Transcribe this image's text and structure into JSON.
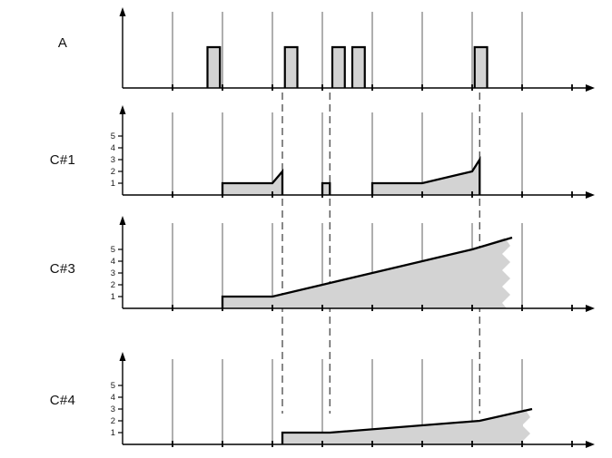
{
  "figure": {
    "background": "#ffffff",
    "colors": {
      "fill": "#d3d3d3",
      "outline": "#000000",
      "grid": "#5f5f5f",
      "dashed": "#3a3a3a",
      "axis": "#000000",
      "tick_label": "#1a1a1a"
    }
  },
  "axes": {
    "x_gridlines": [
      1,
      2,
      3,
      4,
      5,
      6,
      7,
      8
    ],
    "x_ticks": [
      1,
      2,
      3,
      4,
      5,
      6,
      7,
      8,
      9
    ],
    "dashed_lines": [
      3.2,
      4.15,
      7.15
    ]
  },
  "chart_data": [
    {
      "type": "pulse",
      "label": "A",
      "pulses": [
        {
          "start": 1.7,
          "end": 1.95
        },
        {
          "start": 3.25,
          "end": 3.5
        },
        {
          "start": 4.2,
          "end": 4.45
        },
        {
          "start": 4.6,
          "end": 4.85
        },
        {
          "start": 7.05,
          "end": 7.3
        }
      ]
    },
    {
      "type": "step",
      "label": "C#1",
      "y_ticks": [
        1,
        2,
        3,
        4,
        5
      ],
      "torn_right_edge": false,
      "segments": [
        {
          "start": 2,
          "end": 3,
          "value": 1
        },
        {
          "start": 3,
          "end": 3.2,
          "value": 2
        },
        {
          "start": 4,
          "end": 4.15,
          "value": 1
        },
        {
          "start": 5,
          "end": 6,
          "value": 1
        },
        {
          "start": 6,
          "end": 7,
          "value": 2
        },
        {
          "start": 7,
          "end": 7.15,
          "value": 3
        }
      ]
    },
    {
      "type": "step",
      "label": "C#3",
      "y_ticks": [
        1,
        2,
        3,
        4,
        5
      ],
      "torn_right_edge": true,
      "segments": [
        {
          "start": 2,
          "end": 3,
          "value": 1
        },
        {
          "start": 3,
          "end": 4,
          "value": 2
        },
        {
          "start": 4,
          "end": 5,
          "value": 3
        },
        {
          "start": 5,
          "end": 6,
          "value": 4
        },
        {
          "start": 6,
          "end": 7,
          "value": 5
        },
        {
          "start": 7,
          "end": 7.8,
          "value": 6
        }
      ]
    },
    {
      "type": "step",
      "label": "C#4",
      "y_ticks": [
        1,
        2,
        3,
        4,
        5
      ],
      "torn_right_edge": true,
      "segments": [
        {
          "start": 3.2,
          "end": 4.15,
          "value": 1
        },
        {
          "start": 4.15,
          "end": 7.15,
          "value": 2
        },
        {
          "start": 7.15,
          "end": 8.2,
          "value": 3
        }
      ]
    }
  ]
}
